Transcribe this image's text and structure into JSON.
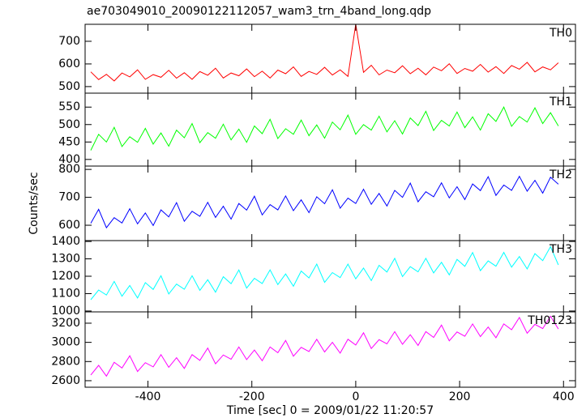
{
  "chart_data": [
    {
      "type": "line",
      "title": "ae703049010_20090122112057_wam3_trn_4band_long.qdp",
      "x": [
        -510,
        -495,
        -480,
        -465,
        -450,
        -435,
        -420,
        -405,
        -390,
        -375,
        -360,
        -345,
        -330,
        -315,
        -300,
        -285,
        -270,
        -255,
        -240,
        -225,
        -210,
        -195,
        -180,
        -165,
        -150,
        -135,
        -120,
        -105,
        -90,
        -75,
        -60,
        -45,
        -30,
        -15,
        0,
        15,
        30,
        45,
        60,
        75,
        90,
        105,
        120,
        135,
        150,
        165,
        180,
        195,
        210,
        225,
        240,
        255,
        270,
        285,
        300,
        315,
        330,
        345,
        360,
        375,
        390
      ],
      "series": [
        {
          "name": "TH0",
          "color": "#ff0000",
          "values": [
            565,
            531,
            554,
            525,
            560,
            543,
            574,
            532,
            553,
            541,
            572,
            537,
            561,
            532,
            566,
            550,
            581,
            538,
            560,
            548,
            578,
            544,
            568,
            538,
            573,
            557,
            587,
            545,
            567,
            554,
            585,
            551,
            574,
            545,
            775,
            563,
            594,
            552,
            573,
            561,
            592,
            557,
            581,
            552,
            586,
            570,
            601,
            558,
            580,
            568,
            598,
            564,
            588,
            558,
            593,
            577,
            607,
            565,
            587,
            574,
            605
          ]
        }
      ],
      "xlim": [
        -521,
        423
      ],
      "ylim": [
        471,
        775
      ],
      "yticks": [
        500,
        600,
        700
      ]
    },
    {
      "type": "line",
      "x": [
        -510,
        -495,
        -480,
        -465,
        -450,
        -435,
        -420,
        -405,
        -390,
        -375,
        -360,
        -345,
        -330,
        -315,
        -300,
        -285,
        -270,
        -255,
        -240,
        -225,
        -210,
        -195,
        -180,
        -165,
        -150,
        -135,
        -120,
        -105,
        -90,
        -75,
        -60,
        -45,
        -30,
        -15,
        0,
        15,
        30,
        45,
        60,
        75,
        90,
        105,
        120,
        135,
        150,
        165,
        180,
        195,
        210,
        225,
        240,
        255,
        270,
        285,
        300,
        315,
        330,
        345,
        360,
        375,
        390
      ],
      "series": [
        {
          "name": "TH1",
          "color": "#00ff00",
          "values": [
            426,
            472,
            450,
            492,
            437,
            465,
            449,
            489,
            444,
            476,
            438,
            484,
            462,
            503,
            448,
            477,
            461,
            501,
            456,
            487,
            449,
            496,
            474,
            515,
            460,
            488,
            472,
            513,
            468,
            499,
            461,
            507,
            485,
            527,
            472,
            500,
            484,
            524,
            479,
            511,
            473,
            519,
            497,
            538,
            483,
            512,
            496,
            536,
            491,
            522,
            484,
            531,
            509,
            550,
            495,
            523,
            507,
            548,
            503,
            534,
            496
          ]
        }
      ],
      "xlim": [
        -521,
        423
      ],
      "ylim": [
        381,
        590
      ],
      "yticks": [
        400,
        450,
        500,
        550
      ]
    },
    {
      "type": "line",
      "ylabel": "Counts/sec",
      "x": [
        -510,
        -495,
        -480,
        -465,
        -450,
        -435,
        -420,
        -405,
        -390,
        -375,
        -360,
        -345,
        -330,
        -315,
        -300,
        -285,
        -270,
        -255,
        -240,
        -225,
        -210,
        -195,
        -180,
        -165,
        -150,
        -135,
        -120,
        -105,
        -90,
        -75,
        -60,
        -45,
        -30,
        -15,
        0,
        15,
        30,
        45,
        60,
        75,
        90,
        105,
        120,
        135,
        150,
        165,
        180,
        195,
        210,
        225,
        240,
        255,
        270,
        285,
        300,
        315,
        330,
        345,
        360,
        375,
        390
      ],
      "series": [
        {
          "name": "TH2",
          "color": "#0000ff",
          "values": [
            607,
            657,
            591,
            627,
            608,
            659,
            605,
            644,
            599,
            655,
            630,
            681,
            614,
            650,
            632,
            682,
            628,
            668,
            622,
            678,
            654,
            704,
            637,
            674,
            655,
            705,
            652,
            691,
            645,
            702,
            677,
            727,
            661,
            697,
            678,
            729,
            675,
            714,
            669,
            725,
            700,
            751,
            684,
            720,
            702,
            752,
            698,
            738,
            692,
            748,
            724,
            774,
            707,
            744,
            725,
            775,
            722,
            761,
            715,
            772,
            747
          ]
        }
      ],
      "xlim": [
        -521,
        423
      ],
      "ylim": [
        545,
        812
      ],
      "yticks": [
        600,
        700,
        800
      ]
    },
    {
      "type": "line",
      "x": [
        -510,
        -495,
        -480,
        -465,
        -450,
        -435,
        -420,
        -405,
        -390,
        -375,
        -360,
        -345,
        -330,
        -315,
        -300,
        -285,
        -270,
        -255,
        -240,
        -225,
        -210,
        -195,
        -180,
        -165,
        -150,
        -135,
        -120,
        -105,
        -90,
        -75,
        -60,
        -45,
        -30,
        -15,
        0,
        15,
        30,
        45,
        60,
        75,
        90,
        105,
        120,
        135,
        150,
        165,
        180,
        195,
        210,
        225,
        240,
        255,
        270,
        285,
        300,
        315,
        330,
        345,
        360,
        375,
        390
      ],
      "series": [
        {
          "name": "TH3",
          "color": "#00ffff",
          "values": [
            1065,
            1121,
            1092,
            1170,
            1085,
            1147,
            1075,
            1163,
            1124,
            1203,
            1098,
            1155,
            1125,
            1203,
            1119,
            1180,
            1108,
            1197,
            1157,
            1236,
            1132,
            1188,
            1158,
            1237,
            1152,
            1213,
            1142,
            1230,
            1190,
            1270,
            1165,
            1221,
            1192,
            1270,
            1185,
            1247,
            1175,
            1263,
            1224,
            1303,
            1198,
            1255,
            1225,
            1303,
            1219,
            1280,
            1208,
            1297,
            1257,
            1336,
            1232,
            1288,
            1258,
            1337,
            1252,
            1313,
            1242,
            1330,
            1290,
            1370,
            1265
          ]
        }
      ],
      "xlim": [
        -521,
        423
      ],
      "ylim": [
        995,
        1405
      ],
      "yticks": [
        1000,
        1100,
        1200,
        1300,
        1400
      ]
    },
    {
      "type": "line",
      "xlabel": "Time [sec] 0 = 2009/01/22 11:20:57",
      "x": [
        -510,
        -495,
        -480,
        -465,
        -450,
        -435,
        -420,
        -405,
        -390,
        -375,
        -360,
        -345,
        -330,
        -315,
        -300,
        -285,
        -270,
        -255,
        -240,
        -225,
        -210,
        -195,
        -180,
        -165,
        -150,
        -135,
        -120,
        -105,
        -90,
        -75,
        -60,
        -45,
        -30,
        -15,
        0,
        15,
        30,
        45,
        60,
        75,
        90,
        105,
        120,
        135,
        150,
        165,
        180,
        195,
        210,
        225,
        240,
        255,
        270,
        285,
        300,
        315,
        330,
        345,
        360,
        375,
        390
      ],
      "series": [
        {
          "name": "TH0123",
          "color": "#ff00ff",
          "values": [
            2660,
            2760,
            2648,
            2792,
            2732,
            2860,
            2696,
            2788,
            2744,
            2872,
            2740,
            2840,
            2728,
            2872,
            2812,
            2940,
            2776,
            2868,
            2824,
            2952,
            2820,
            2920,
            2808,
            2952,
            2892,
            3020,
            2856,
            2948,
            2904,
            3032,
            2900,
            3000,
            2888,
            3032,
            2972,
            3100,
            2936,
            3028,
            2984,
            3112,
            2980,
            3080,
            2968,
            3112,
            3052,
            3180,
            3016,
            3108,
            3064,
            3192,
            3060,
            3160,
            3048,
            3192,
            3132,
            3260,
            3096,
            3188,
            3144,
            3272,
            3140
          ]
        }
      ],
      "xlim": [
        -521,
        423
      ],
      "ylim": [
        2532,
        3318
      ],
      "yticks": [
        2600,
        2800,
        3000,
        3200
      ],
      "xticks": [
        -400,
        -200,
        0,
        200,
        400
      ]
    }
  ]
}
